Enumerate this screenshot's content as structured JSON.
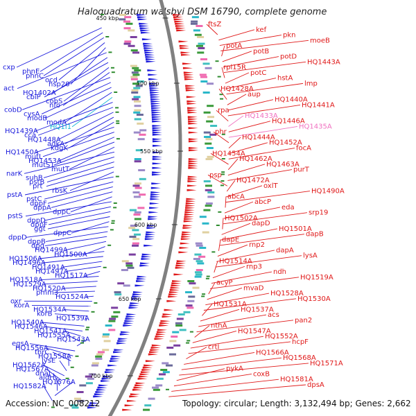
{
  "title": "Haloquadratum walsbyi DSM 16790, complete genome",
  "footer": {
    "accession": "Accession: NC_008212",
    "stats": "Topology: circular; Length: 3,132,494 bp; Genes: 2,662"
  },
  "colors": {
    "reverse_strand": "#1a1adc",
    "forward_strand": "#e01818",
    "highlight_cyan": "#16b4d6",
    "highlight_pink": "#f070c0",
    "backbone": "#808080",
    "tick": "#2e8b2e"
  },
  "kbp_ticks": [
    {
      "label": "450 kbp"
    },
    {
      "label": "500 kbp"
    },
    {
      "label": "550 kbp"
    },
    {
      "label": "600 kbp"
    },
    {
      "label": "650 kbp"
    },
    {
      "label": "700 kbp"
    }
  ],
  "left_labels": [
    "cxp",
    "phnE",
    "phnC",
    "ocd",
    "hsp20",
    "act",
    "HQ1402A",
    "cbiP",
    "cobS",
    "nfo",
    "cobD",
    "cysA",
    "modB",
    "modA",
    "HQ1I1",
    "HQ1439A",
    "cca",
    "HQ1448A",
    "adkA",
    "kdgK",
    "HQ1450A",
    "mutL",
    "HQ1453A",
    "mutS1",
    "mutT",
    "narK",
    "suhB",
    "pstB",
    "prt",
    "rbsK",
    "pstA",
    "pstC",
    "dppF",
    "dppA",
    "dppC",
    "pstS",
    "dppD",
    "dppF",
    "ggt",
    "dppC",
    "dppD",
    "dppB",
    "dpg",
    "HQ1499A",
    "HQ1500A",
    "HQ1506A",
    "HQ1496A",
    "HQ1491A",
    "HQ1497A",
    "HQ1517A",
    "HQ1518A",
    "HQ1529A",
    "HQ1520A",
    "pmm3",
    "HQ1524A",
    "oxr",
    "korA",
    "HQ1534A",
    "korB",
    "HQ1539A",
    "HQ1540A",
    "HQ1546A",
    "HQ1541A",
    "HQ1555A",
    "HQ1543A",
    "egsA",
    "HQ1556A",
    "thrC",
    "HQ1558A",
    "lysE",
    "HQ1562A",
    "HQ1567A",
    "dnaJ",
    "aldH",
    "HQ1576A",
    "HQ1582A"
  ],
  "right_labels": [
    "ftsZ",
    "kef",
    "pkn",
    "moeB",
    "potA",
    "potB",
    "potD",
    "HQ1443A",
    "rpl15R",
    "potC",
    "hstA",
    "lmp",
    "HQ1428A",
    "aup",
    "HQ1440A",
    "HQ1441A",
    "rpa",
    "HQ1433A",
    "HQ1446A",
    "HQ1435A",
    "phr",
    "HQ1444A",
    "HQ1452A",
    "focA",
    "HQ1454A",
    "HQ1462A",
    "HQ1463A",
    "purT",
    "psp",
    "HQ1472A",
    "oxlT",
    "HQ1490A",
    "abcA",
    "abcP",
    "eda",
    "srp19",
    "HQ1502A",
    "dapD",
    "HQ1501A",
    "dapB",
    "dapE",
    "rnp2",
    "dapA",
    "lysA",
    "HQ1514A",
    "rnp3",
    "ndh",
    "HQ1519A",
    "acyP",
    "mvaD",
    "HQ1528A",
    "HQ1530A",
    "HQ1531A",
    "HQ1537A",
    "acs",
    "pan2",
    "nthA",
    "HQ1547A",
    "HQ1552A",
    "hcpF",
    "crtI",
    "HQ1566A",
    "HQ1568A",
    "HQ1571A",
    "pykA",
    "coxB",
    "HQ1581A",
    "dpsA"
  ]
}
